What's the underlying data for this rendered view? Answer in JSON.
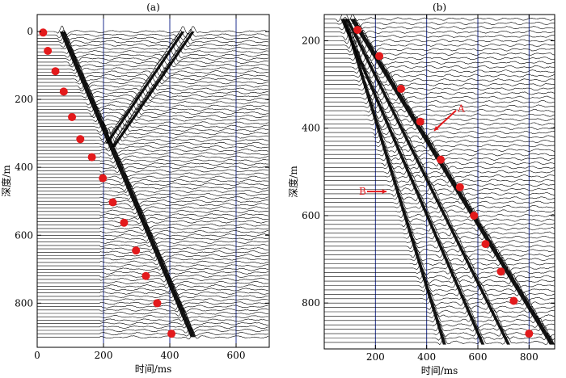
{
  "chart_data": [
    {
      "type": "scatter",
      "panel_label": "(a)",
      "xlabel": "时间/ms",
      "ylabel": "深度/m",
      "xlim": [
        0,
        700
      ],
      "ylim": [
        930,
        -50
      ],
      "y_inverted": true,
      "xticks": [
        0,
        200,
        400,
        600
      ],
      "yticks": [
        0,
        200,
        400,
        600,
        800
      ],
      "vertical_gridlines_at": [
        200,
        400,
        600
      ],
      "trace_depth_start": 0,
      "trace_depth_end": 900,
      "trace_depth_step": 10,
      "wave_events": [
        {
          "kind": "direct-downgoing",
          "time_at_top": 75,
          "time_at_bottom": 470,
          "depth_top": 0,
          "depth_bottom": 900
        },
        {
          "kind": "reflected-upgoing",
          "time_at_top": 440,
          "time_at_bottom": 210,
          "depth_top": 0,
          "depth_bottom": 330
        },
        {
          "kind": "reflected-upgoing",
          "time_at_top": 470,
          "time_at_bottom": 230,
          "depth_top": 0,
          "depth_bottom": 340
        }
      ],
      "picked_points": [
        {
          "x": 18,
          "y": 3
        },
        {
          "x": 32,
          "y": 57
        },
        {
          "x": 55,
          "y": 117
        },
        {
          "x": 80,
          "y": 177
        },
        {
          "x": 105,
          "y": 252
        },
        {
          "x": 130,
          "y": 317
        },
        {
          "x": 165,
          "y": 370
        },
        {
          "x": 198,
          "y": 432
        },
        {
          "x": 228,
          "y": 503
        },
        {
          "x": 262,
          "y": 563
        },
        {
          "x": 298,
          "y": 645
        },
        {
          "x": 328,
          "y": 720
        },
        {
          "x": 362,
          "y": 800
        },
        {
          "x": 405,
          "y": 890
        }
      ],
      "point_color": "#e31a1c",
      "trace_color": "#000000",
      "gridline_color": "#1f2f8f"
    },
    {
      "type": "scatter",
      "panel_label": "(b)",
      "xlabel": "时间/ms",
      "ylabel": "深度/m",
      "xlim": [
        0,
        900
      ],
      "ylim": [
        905,
        140
      ],
      "y_inverted": true,
      "xticks": [
        200,
        400,
        600,
        800
      ],
      "yticks": [
        200,
        400,
        600,
        800
      ],
      "vertical_gridlines_at": [
        200,
        400,
        600,
        800
      ],
      "trace_depth_start": 150,
      "trace_depth_end": 895,
      "trace_depth_step": 10,
      "wave_events": [
        {
          "kind": "downgoing-A",
          "time_at_top": 110,
          "time_at_bottom": 890,
          "depth_top": 150,
          "depth_bottom": 895
        },
        {
          "kind": "downgoing",
          "time_at_top": 90,
          "time_at_bottom": 720,
          "depth_top": 150,
          "depth_bottom": 895
        },
        {
          "kind": "downgoing",
          "time_at_top": 70,
          "time_at_bottom": 620,
          "depth_top": 150,
          "depth_bottom": 895
        },
        {
          "kind": "downgoing-B",
          "time_at_top": 80,
          "time_at_bottom": 470,
          "depth_top": 150,
          "depth_bottom": 895
        }
      ],
      "picked_points": [
        {
          "x": 130,
          "y": 175
        },
        {
          "x": 215,
          "y": 235
        },
        {
          "x": 300,
          "y": 310
        },
        {
          "x": 375,
          "y": 385
        },
        {
          "x": 455,
          "y": 472
        },
        {
          "x": 530,
          "y": 535
        },
        {
          "x": 585,
          "y": 600
        },
        {
          "x": 630,
          "y": 665
        },
        {
          "x": 690,
          "y": 728
        },
        {
          "x": 740,
          "y": 795
        },
        {
          "x": 800,
          "y": 870
        }
      ],
      "annotations": [
        {
          "text": "A",
          "time": 420,
          "depth": 400
        },
        {
          "text": "B",
          "time": 300,
          "depth": 545
        }
      ],
      "point_color": "#e31a1c",
      "trace_color": "#000000",
      "gridline_color": "#1f2f8f"
    }
  ]
}
